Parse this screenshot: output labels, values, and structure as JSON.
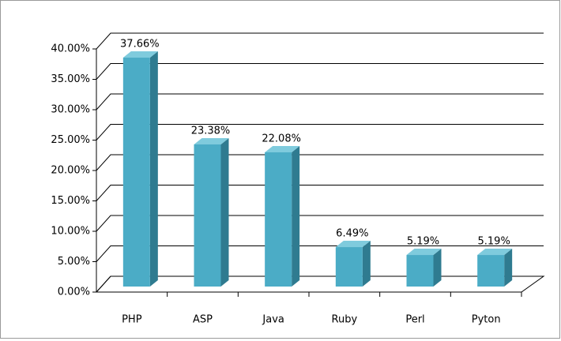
{
  "chart_data": {
    "type": "bar3d",
    "categories": [
      "PHP",
      "ASP",
      "Java",
      "Ruby",
      "Perl",
      "Pyton"
    ],
    "values": [
      37.66,
      23.38,
      22.08,
      6.49,
      5.19,
      5.19
    ],
    "value_labels": [
      "37.66%",
      "23.38%",
      "22.08%",
      "6.49%",
      "5.19%",
      "5.19%"
    ],
    "color": "#4bacc6",
    "ylim": [
      0,
      40
    ],
    "yticks": [
      {
        "value": 0,
        "label": "0.00%"
      },
      {
        "value": 5,
        "label": "5.00%"
      },
      {
        "value": 10,
        "label": "10.00%"
      },
      {
        "value": 15,
        "label": "15.00%"
      },
      {
        "value": 20,
        "label": "20.00%"
      },
      {
        "value": 25,
        "label": "25.00%"
      },
      {
        "value": 30,
        "label": "30.00%"
      },
      {
        "value": 35,
        "label": "35.00%"
      },
      {
        "value": 40,
        "label": "40.00%"
      }
    ],
    "grid": true
  }
}
